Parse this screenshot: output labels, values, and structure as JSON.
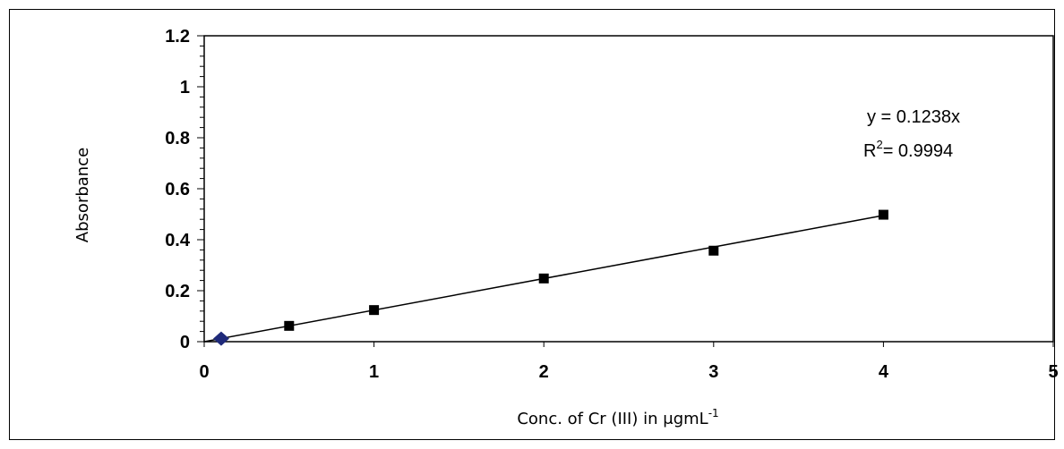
{
  "chart_data": {
    "type": "scatter",
    "title": "",
    "xlabel": "Conc. of Cr (III) in μgmL",
    "xlabel_superscript": "-1",
    "ylabel": "Absorbance",
    "xlim": [
      0,
      5
    ],
    "ylim": [
      0,
      1.2
    ],
    "x_ticks": [
      "0",
      "1",
      "2",
      "3",
      "4",
      "5"
    ],
    "y_ticks": [
      "0",
      "0.2",
      "0.4",
      "0.6",
      "0.8",
      "1",
      "1.2"
    ],
    "y_minor_step": 0.04,
    "grid": false,
    "legend": "none",
    "series": [
      {
        "marker": "square",
        "color": "#000000",
        "points": [
          {
            "x": 0.5,
            "y": 0.062
          },
          {
            "x": 1,
            "y": 0.124
          },
          {
            "x": 2,
            "y": 0.248
          },
          {
            "x": 3,
            "y": 0.357
          },
          {
            "x": 4,
            "y": 0.498
          }
        ]
      },
      {
        "marker": "diamond",
        "color": "#1f2a7a",
        "points": [
          {
            "x": 0.1,
            "y": 0.012
          }
        ]
      }
    ],
    "trendline": {
      "slope": 0.1238,
      "intercept": 0,
      "x_range": [
        0,
        4
      ],
      "color": "#000000"
    },
    "annotations": {
      "equation": "y = 0.1238x",
      "r2_prefix": "R",
      "r2_sup": "2",
      "r2_value": "= 0.9994"
    }
  }
}
